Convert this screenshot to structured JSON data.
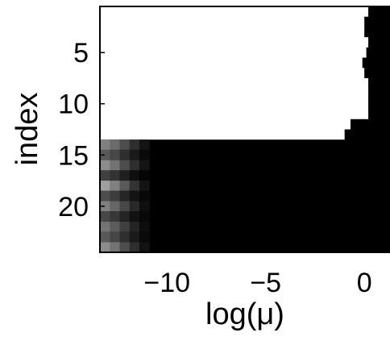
{
  "chart_data": {
    "type": "heatmap",
    "title": "",
    "xlabel": "log(μ)",
    "ylabel": "index",
    "xlim": [
      -13.4,
      1.3
    ],
    "ylim": [
      24.5,
      0.5
    ],
    "x_ticks": [
      {
        "value": -10,
        "label": "−10"
      },
      {
        "value": -5,
        "label": "−5"
      },
      {
        "value": 0,
        "label": "0"
      }
    ],
    "y_ticks": [
      {
        "value": 5,
        "label": "5"
      },
      {
        "value": 10,
        "label": "10"
      },
      {
        "value": 15,
        "label": "15"
      },
      {
        "value": 20,
        "label": "20"
      }
    ],
    "colormap": "gray",
    "value_range": [
      0,
      1
    ],
    "rows": [
      {
        "index": 1,
        "white_until": 0.2
      },
      {
        "index": 2,
        "white_until": 0.0
      },
      {
        "index": 3,
        "white_until": 0.0
      },
      {
        "index": 4,
        "white_until": 0.2
      },
      {
        "index": 5,
        "white_until": 0.1
      },
      {
        "index": 6,
        "white_until": -0.1
      },
      {
        "index": 7,
        "white_until": 0.0
      },
      {
        "index": 8,
        "white_until": 0.2
      },
      {
        "index": 9,
        "white_until": 0.2
      },
      {
        "index": 10,
        "white_until": 0.2
      },
      {
        "index": 11,
        "white_until": 0.2
      },
      {
        "index": 12,
        "white_until": -0.7
      },
      {
        "index": 13,
        "white_until": -1.0
      },
      {
        "index": 14,
        "gray_levels": [
          0.5,
          0.42,
          0.3,
          0.18,
          0.08
        ]
      },
      {
        "index": 15,
        "gray_levels": [
          0.35,
          0.28,
          0.18,
          0.1,
          0.04
        ]
      },
      {
        "index": 16,
        "gray_levels": [
          0.55,
          0.45,
          0.3,
          0.18,
          0.08
        ]
      },
      {
        "index": 17,
        "gray_levels": [
          0.25,
          0.2,
          0.12,
          0.06,
          0.02
        ]
      },
      {
        "index": 18,
        "gray_levels": [
          0.62,
          0.5,
          0.35,
          0.2,
          0.08
        ]
      },
      {
        "index": 19,
        "gray_levels": [
          0.3,
          0.24,
          0.15,
          0.08,
          0.03
        ]
      },
      {
        "index": 20,
        "gray_levels": [
          0.5,
          0.4,
          0.28,
          0.16,
          0.06
        ]
      },
      {
        "index": 21,
        "gray_levels": [
          0.28,
          0.22,
          0.14,
          0.07,
          0.03
        ]
      },
      {
        "index": 22,
        "gray_levels": [
          0.45,
          0.36,
          0.25,
          0.14,
          0.05
        ]
      },
      {
        "index": 23,
        "gray_levels": [
          0.35,
          0.28,
          0.18,
          0.1,
          0.04
        ]
      },
      {
        "index": 24,
        "gray_levels": [
          0.55,
          0.45,
          0.3,
          0.18,
          0.07
        ]
      }
    ],
    "gray_x_start": -13.4,
    "gray_x_step": 0.5
  }
}
